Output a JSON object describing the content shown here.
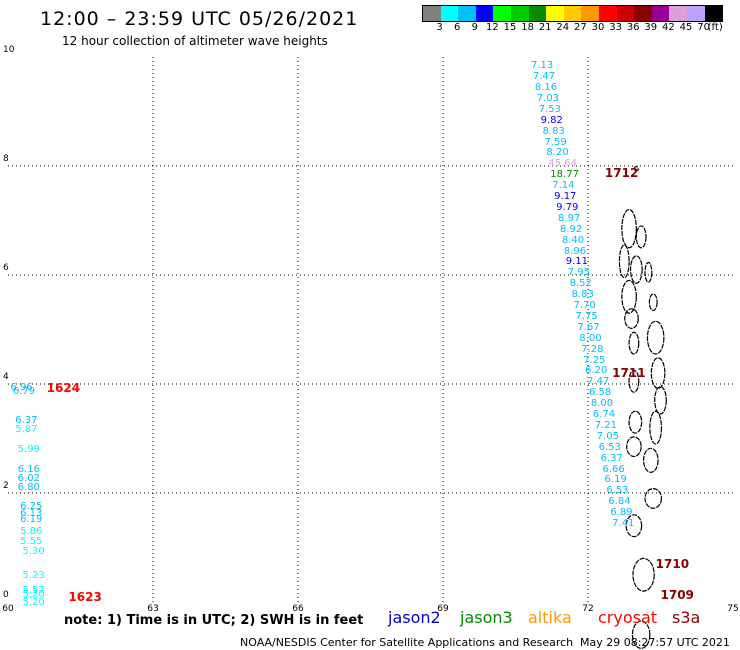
{
  "header": {
    "title": "12:00 – 23:59 UTC 05/26/2021",
    "subtitle": "12 hour collection of altimeter wave heights"
  },
  "color_scale": {
    "colors": [
      "#808080",
      "#00ffff",
      "#00bfff",
      "#0000ff",
      "#00ff00",
      "#00cd00",
      "#008b00",
      "#ffff00",
      "#ffcc00",
      "#ff9900",
      "#ff0000",
      "#cc0000",
      "#8b0000",
      "#990099",
      "#dda0dd",
      "#bf9fff",
      "#000000"
    ],
    "labels": [
      "3",
      "6",
      "9",
      "12",
      "15",
      "18",
      "21",
      "24",
      "27",
      "30",
      "33",
      "36",
      "39",
      "42",
      "45",
      "70",
      "(ft)"
    ]
  },
  "axes": {
    "lon_min": 60,
    "lon_max": 75,
    "lat_min": 0,
    "lat_max": 10,
    "x_ticks": [
      "60",
      "63",
      "66",
      "69",
      "72",
      "75"
    ],
    "y_ticks": [
      "0",
      "2",
      "4",
      "6",
      "8",
      "10"
    ]
  },
  "tracks": [
    {
      "time": "1712",
      "time_color": "#8b0000",
      "time_pos": [
        72.35,
        7.87
      ],
      "points": [
        {
          "lon": 70.82,
          "lat": 9.83,
          "v": "7.13",
          "c": "#00bfff"
        },
        {
          "lon": 70.86,
          "lat": 9.63,
          "v": "7.47",
          "c": "#00bfff"
        },
        {
          "lon": 70.9,
          "lat": 9.43,
          "v": "8.16",
          "c": "#00bfff"
        },
        {
          "lon": 70.94,
          "lat": 9.23,
          "v": "7.03",
          "c": "#00bfff"
        },
        {
          "lon": 70.98,
          "lat": 9.03,
          "v": "7.53",
          "c": "#00bfff"
        },
        {
          "lon": 71.02,
          "lat": 8.83,
          "v": "9.82",
          "c": "#0000ff"
        },
        {
          "lon": 71.06,
          "lat": 8.63,
          "v": "8.83",
          "c": "#00bfff"
        },
        {
          "lon": 71.1,
          "lat": 8.43,
          "v": "7.59",
          "c": "#00bfff"
        },
        {
          "lon": 71.14,
          "lat": 8.23,
          "v": "8.20",
          "c": "#00bfff"
        },
        {
          "lon": 71.18,
          "lat": 8.03,
          "v": "45.64",
          "c": "#dda0dd"
        },
        {
          "lon": 71.22,
          "lat": 7.83,
          "v": "18.77",
          "c": "#008b00"
        },
        {
          "lon": 71.26,
          "lat": 7.63,
          "v": "7.14",
          "c": "#00bfff"
        },
        {
          "lon": 71.3,
          "lat": 7.43,
          "v": "9.17",
          "c": "#0000ff"
        },
        {
          "lon": 71.34,
          "lat": 7.23,
          "v": "9.79",
          "c": "#0000ff"
        },
        {
          "lon": 71.38,
          "lat": 7.03,
          "v": "8.97",
          "c": "#00bfff"
        },
        {
          "lon": 71.42,
          "lat": 6.83,
          "v": "8.92",
          "c": "#00bfff"
        },
        {
          "lon": 71.46,
          "lat": 6.63,
          "v": "8.40",
          "c": "#00bfff"
        },
        {
          "lon": 71.5,
          "lat": 6.43,
          "v": "8.96",
          "c": "#00bfff"
        },
        {
          "lon": 71.54,
          "lat": 6.23,
          "v": "9.11",
          "c": "#0000ff"
        },
        {
          "lon": 71.58,
          "lat": 6.03,
          "v": "7.95",
          "c": "#00bfff"
        },
        {
          "lon": 71.62,
          "lat": 5.83,
          "v": "8.52",
          "c": "#00bfff"
        },
        {
          "lon": 71.66,
          "lat": 5.63,
          "v": "8.83",
          "c": "#00bfff"
        },
        {
          "lon": 71.7,
          "lat": 5.43,
          "v": "7.70",
          "c": "#00bfff"
        },
        {
          "lon": 71.74,
          "lat": 5.23,
          "v": "7.75",
          "c": "#00bfff"
        }
      ]
    },
    {
      "time": "1711",
      "time_color": "#8b0000",
      "time_pos": [
        72.5,
        4.2
      ],
      "points": [
        {
          "lon": 71.78,
          "lat": 5.03,
          "v": "7.67",
          "c": "#00bfff"
        },
        {
          "lon": 71.82,
          "lat": 4.83,
          "v": "8.00",
          "c": "#00bfff"
        },
        {
          "lon": 71.86,
          "lat": 4.63,
          "v": "7.28",
          "c": "#00bfff"
        },
        {
          "lon": 71.9,
          "lat": 4.43,
          "v": "7.25",
          "c": "#00bfff"
        },
        {
          "lon": 71.94,
          "lat": 4.23,
          "v": "6.20",
          "c": "#00bfff"
        },
        {
          "lon": 71.98,
          "lat": 4.03,
          "v": "7.47",
          "c": "#00bfff"
        },
        {
          "lon": 72.02,
          "lat": 3.83,
          "v": "6.58",
          "c": "#00bfff"
        },
        {
          "lon": 72.06,
          "lat": 3.63,
          "v": "8.00",
          "c": "#00bfff"
        },
        {
          "lon": 72.1,
          "lat": 3.43,
          "v": "6.74",
          "c": "#00bfff"
        },
        {
          "lon": 72.14,
          "lat": 3.23,
          "v": "7.21",
          "c": "#00bfff"
        },
        {
          "lon": 72.18,
          "lat": 3.03,
          "v": "7.05",
          "c": "#00bfff"
        },
        {
          "lon": 72.22,
          "lat": 2.83,
          "v": "6.53",
          "c": "#00bfff"
        },
        {
          "lon": 72.26,
          "lat": 2.63,
          "v": "6.37",
          "c": "#00bfff"
        },
        {
          "lon": 72.3,
          "lat": 2.43,
          "v": "6.66",
          "c": "#00bfff"
        },
        {
          "lon": 72.34,
          "lat": 2.23,
          "v": "6.19",
          "c": "#00bfff"
        }
      ]
    },
    {
      "time": "1710",
      "time_color": "#8b0000",
      "time_pos": [
        73.4,
        0.7
      ],
      "points": [
        {
          "lon": 72.38,
          "lat": 2.03,
          "v": "6.53",
          "c": "#00bfff"
        },
        {
          "lon": 72.42,
          "lat": 1.83,
          "v": "6.84",
          "c": "#00bfff"
        },
        {
          "lon": 72.46,
          "lat": 1.63,
          "v": "6.89",
          "c": "#00bfff"
        }
      ]
    },
    {
      "time": "1709",
      "time_color": "#8b0000",
      "time_pos": [
        73.5,
        0.12
      ],
      "points": [
        {
          "lon": 72.5,
          "lat": 1.43,
          "v": "7.41",
          "c": "#00bfff"
        }
      ]
    },
    {
      "time": "1624",
      "time_color": "#ff0000",
      "time_pos": [
        60.8,
        3.92
      ],
      "points": [
        {
          "lon": 60.05,
          "lat": 3.93,
          "v": "6.96",
          "c": "#00bfff"
        },
        {
          "lon": 60.1,
          "lat": 3.86,
          "v": "6.79",
          "c": "#00bfff"
        },
        {
          "lon": 60.15,
          "lat": 3.33,
          "v": "6.37",
          "c": "#00bfff"
        },
        {
          "lon": 60.15,
          "lat": 3.15,
          "v": "5.87",
          "c": "#00ffff"
        },
        {
          "lon": 60.2,
          "lat": 2.78,
          "v": "5.99",
          "c": "#00ffff"
        },
        {
          "lon": 60.2,
          "lat": 2.42,
          "v": "6.16",
          "c": "#00bfff"
        },
        {
          "lon": 60.2,
          "lat": 2.26,
          "v": "6.02",
          "c": "#00bfff"
        },
        {
          "lon": 60.2,
          "lat": 2.1,
          "v": "6.80",
          "c": "#00bfff"
        },
        {
          "lon": 60.25,
          "lat": 1.74,
          "v": "6.25",
          "c": "#00bfff"
        },
        {
          "lon": 60.25,
          "lat": 1.62,
          "v": "6.13",
          "c": "#00bfff"
        },
        {
          "lon": 60.25,
          "lat": 1.5,
          "v": "6.19",
          "c": "#00bfff"
        },
        {
          "lon": 60.25,
          "lat": 1.28,
          "v": "5.86",
          "c": "#00ffff"
        },
        {
          "lon": 60.25,
          "lat": 1.1,
          "v": "5.55",
          "c": "#00ffff"
        },
        {
          "lon": 60.3,
          "lat": 0.92,
          "v": "5.30",
          "c": "#00ffff"
        },
        {
          "lon": 60.3,
          "lat": 0.48,
          "v": "5.23",
          "c": "#00ffff"
        }
      ]
    },
    {
      "time": "1623",
      "time_color": "#ff0000",
      "time_pos": [
        61.25,
        0.1
      ],
      "points": [
        {
          "lon": 60.3,
          "lat": 0.2,
          "v": "5.57",
          "c": "#00ffff"
        },
        {
          "lon": 60.3,
          "lat": 0.12,
          "v": "5.20",
          "c": "#00ffff"
        },
        {
          "lon": 60.3,
          "lat": -0.02,
          "v": "5.20",
          "c": "#00ffff"
        }
      ]
    }
  ],
  "note": "note: 1) Time is in UTC; 2) SWH is in feet",
  "satellites": [
    {
      "name": "jason2",
      "color": "#0000cd"
    },
    {
      "name": "jason3",
      "color": "#008b00"
    },
    {
      "name": "altika",
      "color": "#ff9900"
    },
    {
      "name": "cryosat",
      "color": "#ff0000"
    },
    {
      "name": "s3a",
      "color": "#8b0000"
    }
  ],
  "footer": "NOAA/NESDIS Center for Satellite Applications and Research",
  "timestamp": "May 29 08:27:57 UTC 2021"
}
